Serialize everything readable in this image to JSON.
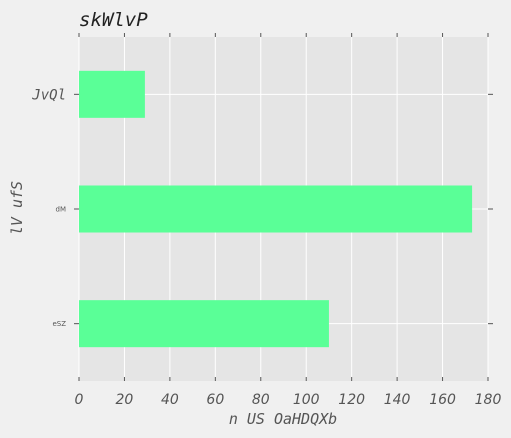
{
  "chart_data": {
    "type": "bar",
    "orientation": "horizontal",
    "title": "skWlvP",
    "xlabel": "n US  OaHDQXb",
    "ylabel": "lV ufS",
    "categories": [
      "JvQl",
      "dM",
      "eSZ"
    ],
    "values": [
      29,
      173,
      110
    ],
    "xlim": [
      0,
      180
    ],
    "xticks": [
      0,
      20,
      40,
      60,
      80,
      100,
      120,
      140,
      160,
      180
    ],
    "grid": true,
    "bar_color": "#5aff97",
    "background_color": "#e5e5e5",
    "figure_color": "#f0f0f0",
    "grid_color": "#ffffff"
  }
}
